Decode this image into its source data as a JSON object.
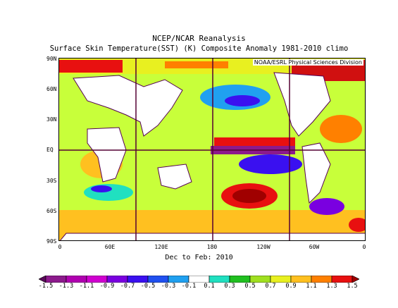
{
  "title": "NCEP/NCAR Reanalysis",
  "subtitle": "Surface Skin Temperature(SST) (K) Composite Anomaly 1981-2010 climo",
  "credit": "NOAA/ESRL Physical Sciences Division",
  "period": "Dec to Feb: 2010",
  "lat_labels": [
    "90N",
    "60N",
    "30N",
    "EQ",
    "30S",
    "60S",
    "90S"
  ],
  "lon_labels": [
    "0",
    "60E",
    "120E",
    "180",
    "120W",
    "60W",
    "0"
  ],
  "colorbar": {
    "labels": [
      "-1.5",
      "-1.3",
      "-1.1",
      "-0.9",
      "-0.7",
      "-0.5",
      "-0.3",
      "-0.1",
      "0.1",
      "0.3",
      "0.5",
      "0.7",
      "0.9",
      "1.1",
      "1.3",
      "1.5"
    ],
    "colors": [
      "#5a0a5a",
      "#8c1a8c",
      "#b000b0",
      "#d000d0",
      "#7a00e0",
      "#3a10f0",
      "#2050f0",
      "#20a0f0",
      "#ffffff",
      "#20e0c0",
      "#20c020",
      "#a0e020",
      "#e8f020",
      "#ffc020",
      "#ff8000",
      "#e81010",
      "#a00000"
    ]
  }
}
